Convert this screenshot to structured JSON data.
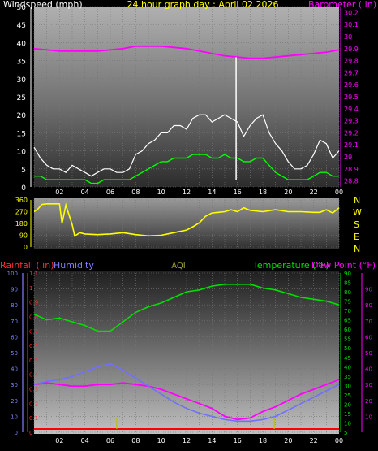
{
  "header": {
    "left": "Windspeed (mph)",
    "center": "24 hour graph day : April 02 2026",
    "right": "Barometer (.in)"
  },
  "middle_panel": {
    "compass_labels": [
      "N",
      "W",
      "S",
      "E",
      "N"
    ]
  },
  "lower_header": {
    "rainfall": "Rainfall (.in)",
    "humidity": "Humidity",
    "aqi": "AQI",
    "temperature": "Temperature (°F)",
    "dewpoint": "Dew Point (°F)"
  },
  "colors": {
    "background": "#000000",
    "wind_gust": "#ffffff",
    "wind_speed": "#00ff00",
    "barometer": "#ff00ff",
    "direction": "#ffff00",
    "temperature": "#00e000",
    "dewpoint": "#ff00ff",
    "humidity": "#7070ff",
    "rain": "#ff0000",
    "grid": "#777777"
  },
  "chart_data": [
    {
      "type": "line",
      "name": "wind-barometer",
      "x_ticks": [
        "02",
        "04",
        "06",
        "08",
        "10",
        "12",
        "14",
        "16",
        "18",
        "20",
        "22",
        "00"
      ],
      "y_left_ticks": [
        0,
        5,
        10,
        15,
        20,
        25,
        30,
        35,
        40,
        45,
        50
      ],
      "y_left_range": [
        0,
        50
      ],
      "y_right_ticks": [
        "28.8",
        "28.9",
        "29",
        "29.1",
        "29.2",
        "29.3",
        "29.4",
        "29.5",
        "29.6",
        "29.7",
        "29.8",
        "29.9",
        "30",
        "30.1",
        "30.2"
      ],
      "y_right_range": [
        28.75,
        30.25
      ],
      "x_range": [
        0,
        24
      ],
      "series": [
        {
          "key": "barometer",
          "axis": "right",
          "x": [
            0,
            1,
            2,
            3,
            4,
            5,
            6,
            7,
            8,
            9,
            10,
            11,
            12,
            13,
            14,
            15,
            16,
            17,
            18,
            19,
            20,
            21,
            22,
            23,
            24
          ],
          "values": [
            29.9,
            29.89,
            29.88,
            29.88,
            29.88,
            29.88,
            29.89,
            29.9,
            29.92,
            29.92,
            29.92,
            29.91,
            29.9,
            29.88,
            29.86,
            29.84,
            29.83,
            29.82,
            29.82,
            29.83,
            29.84,
            29.85,
            29.86,
            29.87,
            29.89
          ]
        },
        {
          "key": "gust",
          "axis": "left",
          "x": [
            0,
            0.5,
            1,
            1.5,
            2,
            2.5,
            3,
            3.5,
            4,
            4.5,
            5,
            5.5,
            6,
            6.5,
            7,
            7.5,
            8,
            8.5,
            9,
            9.5,
            10,
            10.5,
            11,
            11.5,
            12,
            12.5,
            13,
            13.5,
            14,
            14.5,
            15,
            15.5,
            16,
            16.5,
            17,
            17.5,
            18,
            18.5,
            19,
            19.5,
            20,
            20.5,
            21,
            21.5,
            22,
            22.5,
            23,
            23.5,
            24
          ],
          "values": [
            11,
            8,
            6,
            5,
            5,
            4,
            6,
            5,
            4,
            3,
            4,
            5,
            5,
            4,
            4,
            5,
            9,
            10,
            12,
            13,
            15,
            15,
            17,
            17,
            16,
            19,
            20,
            20,
            18,
            19,
            20,
            19,
            18,
            14,
            17,
            19,
            20,
            15,
            12,
            10,
            7,
            5,
            5,
            6,
            9,
            13,
            12,
            8,
            10
          ]
        },
        {
          "key": "wind",
          "axis": "left",
          "x": [
            0,
            0.5,
            1,
            1.5,
            2,
            2.5,
            3,
            3.5,
            4,
            4.5,
            5,
            5.5,
            6,
            6.5,
            7,
            7.5,
            8,
            8.5,
            9,
            9.5,
            10,
            10.5,
            11,
            11.5,
            12,
            12.5,
            13,
            13.5,
            14,
            14.5,
            15,
            15.5,
            16,
            16.5,
            17,
            17.5,
            18,
            18.5,
            19,
            19.5,
            20,
            20.5,
            21,
            21.5,
            22,
            22.5,
            23,
            23.5,
            24
          ],
          "values": [
            3,
            3,
            2,
            2,
            2,
            2,
            2,
            2,
            2,
            1,
            1,
            2,
            2,
            2,
            2,
            2,
            3,
            4,
            5,
            6,
            7,
            7,
            8,
            8,
            8,
            9,
            9,
            9,
            8,
            8,
            9,
            8,
            8,
            7,
            7,
            8,
            8,
            6,
            4,
            3,
            2,
            2,
            2,
            2,
            3,
            4,
            4,
            3,
            3
          ]
        },
        {
          "key": "gust_spike",
          "axis": "left",
          "x": [
            15.9,
            15.9
          ],
          "values": [
            2,
            36
          ]
        }
      ]
    },
    {
      "type": "line",
      "name": "wind-direction",
      "x_range": [
        0,
        24
      ],
      "y_left_ticks": [
        0,
        90,
        180,
        270,
        360
      ],
      "y_left_range": [
        0,
        360
      ],
      "series": [
        {
          "key": "direction",
          "x": [
            0,
            0.3,
            0.6,
            1,
            1.5,
            2,
            2.2,
            2.5,
            3,
            3.2,
            3.6,
            4,
            5,
            6,
            7,
            8,
            9,
            10,
            11,
            12,
            12.5,
            13,
            13.5,
            14,
            14.5,
            15,
            15.5,
            16,
            16.5,
            17,
            18,
            19,
            20,
            21,
            22,
            22.5,
            23,
            23.5,
            24
          ],
          "values": [
            270,
            290,
            325,
            330,
            330,
            330,
            180,
            320,
            170,
            85,
            110,
            100,
            95,
            100,
            110,
            95,
            85,
            90,
            110,
            130,
            155,
            185,
            235,
            260,
            265,
            270,
            285,
            270,
            300,
            280,
            270,
            285,
            270,
            270,
            265,
            265,
            285,
            260,
            300
          ]
        }
      ]
    },
    {
      "type": "line",
      "name": "temp-humidity-rain",
      "x_range": [
        0,
        24
      ],
      "x_ticks": [
        "02",
        "04",
        "06",
        "08",
        "10",
        "12",
        "14",
        "16",
        "18",
        "20",
        "22",
        "00"
      ],
      "y_rain_ticks": [
        "0",
        "0.1",
        "0.2",
        "0.3",
        "0.4",
        "0.5",
        "0.6",
        "0.7",
        "0.8",
        "0.9",
        "1",
        "1.1"
      ],
      "y_rain_range": [
        0,
        1.1
      ],
      "y_humidity_ticks": [
        0,
        10,
        20,
        30,
        40,
        50,
        60,
        70,
        80,
        90,
        100
      ],
      "y_humidity_range": [
        0,
        100
      ],
      "y_temp_ticks": [
        5,
        10,
        15,
        20,
        25,
        30,
        35,
        40,
        45,
        50,
        55,
        60,
        65,
        70,
        75,
        80,
        85,
        90
      ],
      "y_temp_range": [
        5,
        90
      ],
      "y_dew_ticks": [
        10,
        20,
        30,
        40,
        50,
        60,
        70,
        80,
        90
      ],
      "y_dew_range": [
        0,
        100
      ],
      "series": [
        {
          "key": "temperature",
          "axis": "temp",
          "x": [
            0,
            1,
            2,
            3,
            4,
            5,
            6,
            7,
            8,
            9,
            10,
            11,
            12,
            13,
            14,
            15,
            16,
            17,
            18,
            19,
            20,
            21,
            22,
            23,
            24
          ],
          "values": [
            68,
            65,
            66,
            64,
            62,
            59,
            59,
            64,
            69,
            72,
            74,
            77,
            80,
            81,
            83,
            84,
            84,
            84,
            82,
            81,
            79,
            77,
            76,
            75,
            73
          ]
        },
        {
          "key": "dewpoint",
          "axis": "dew",
          "x": [
            0,
            1,
            2,
            3,
            4,
            5,
            6,
            7,
            8,
            9,
            10,
            11,
            12,
            13,
            14,
            15,
            16,
            17,
            18,
            19,
            20,
            21,
            22,
            23,
            24
          ],
          "values": [
            30,
            31,
            30,
            29,
            29,
            30,
            30,
            31,
            30,
            29,
            27,
            24,
            21,
            18,
            15,
            10,
            8,
            9,
            13,
            16,
            20,
            24,
            27,
            30,
            33
          ]
        },
        {
          "key": "humidity",
          "axis": "humidity",
          "x": [
            0,
            1,
            2,
            3,
            4,
            5,
            6,
            7,
            8,
            9,
            10,
            11,
            12,
            13,
            14,
            15,
            16,
            17,
            18,
            19,
            20,
            21,
            22,
            23,
            24
          ],
          "values": [
            30,
            32,
            33,
            35,
            38,
            41,
            43,
            39,
            34,
            29,
            24,
            19,
            15,
            12,
            10,
            8,
            7,
            7,
            8,
            10,
            14,
            18,
            22,
            26,
            30
          ]
        },
        {
          "key": "rain",
          "axis": "rain",
          "x": [
            0,
            24
          ],
          "values": [
            0,
            0
          ]
        },
        {
          "key": "rain_marks",
          "axis": "rain",
          "x": [
            6.5,
            18.9
          ],
          "values": [
            0.1,
            0.1
          ]
        }
      ]
    }
  ]
}
